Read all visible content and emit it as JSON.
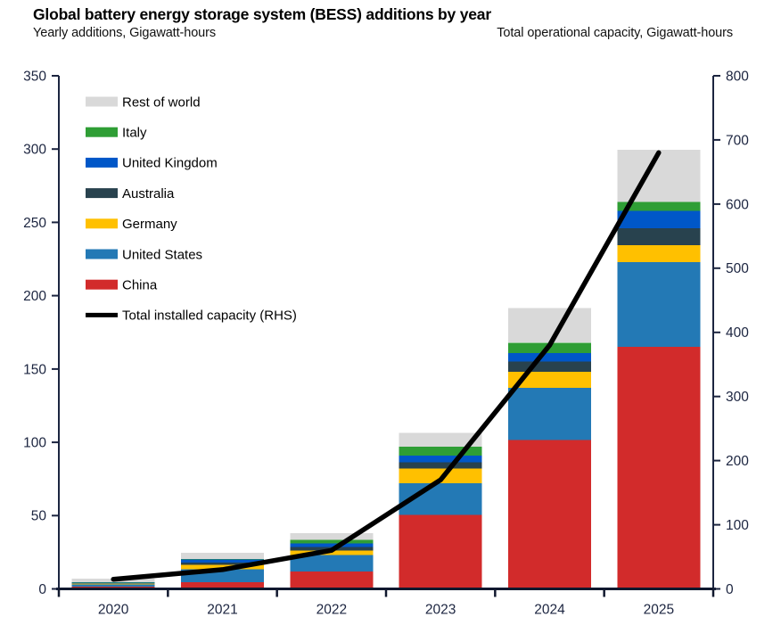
{
  "title": "Global battery energy storage system (BESS) additions by year",
  "subtitle_left": "Yearly additions, Gigawatt-hours",
  "subtitle_right": "Total operational capacity, Gigawatt-hours",
  "chart_data": {
    "type": "bar",
    "stacked": true,
    "grid": false,
    "unit": "Gigawatt-hours",
    "categories": [
      "2020",
      "2021",
      "2022",
      "2023",
      "2024",
      "2025"
    ],
    "bar_series": [
      {
        "name": "China",
        "color": "#d22b2b",
        "values": [
          1.5,
          4.5,
          12.0,
          50.5,
          101.5,
          165.0
        ]
      },
      {
        "name": "United States",
        "color": "#2379b5",
        "values": [
          1.5,
          9.0,
          11.0,
          21.5,
          35.5,
          58.0
        ]
      },
      {
        "name": "Germany",
        "color": "#ffc000",
        "values": [
          0.5,
          3.0,
          3.0,
          10.0,
          11.0,
          11.5
        ]
      },
      {
        "name": "Australia",
        "color": "#28424e",
        "values": [
          0.2,
          1.5,
          2.5,
          4.5,
          7.0,
          11.5
        ]
      },
      {
        "name": "United Kingdom",
        "color": "#0057c8",
        "values": [
          0.6,
          2.0,
          2.5,
          4.5,
          6.0,
          12.0
        ]
      },
      {
        "name": "Italy",
        "color": "#2f9e35",
        "values": [
          0.2,
          0.5,
          2.5,
          6.0,
          7.0,
          6.0
        ]
      },
      {
        "name": "Rest of world",
        "color": "#d9d9d9",
        "values": [
          2.5,
          4.0,
          4.5,
          9.5,
          23.5,
          35.5
        ]
      }
    ],
    "bar_totals": [
      7.0,
      24.5,
      38.0,
      106.5,
      191.5,
      299.5
    ],
    "line_series": {
      "name": "Total installed capacity (RHS)",
      "color": "#000000",
      "axis": "right",
      "values": [
        15,
        30,
        60,
        170,
        380,
        680
      ]
    },
    "left_axis": {
      "ticks": [
        0,
        50,
        100,
        150,
        200,
        250,
        300,
        350
      ],
      "range": [
        0,
        350
      ]
    },
    "right_axis": {
      "ticks": [
        0,
        100,
        200,
        300,
        400,
        500,
        600,
        700,
        800
      ],
      "range": [
        0,
        800
      ]
    },
    "legend": {
      "position": "top-left-inside",
      "items": [
        "Rest of world",
        "Italy",
        "United Kingdom",
        "Australia",
        "Germany",
        "United States",
        "China",
        "Total installed capacity (RHS)"
      ]
    },
    "axis_color": "#1c2540"
  }
}
